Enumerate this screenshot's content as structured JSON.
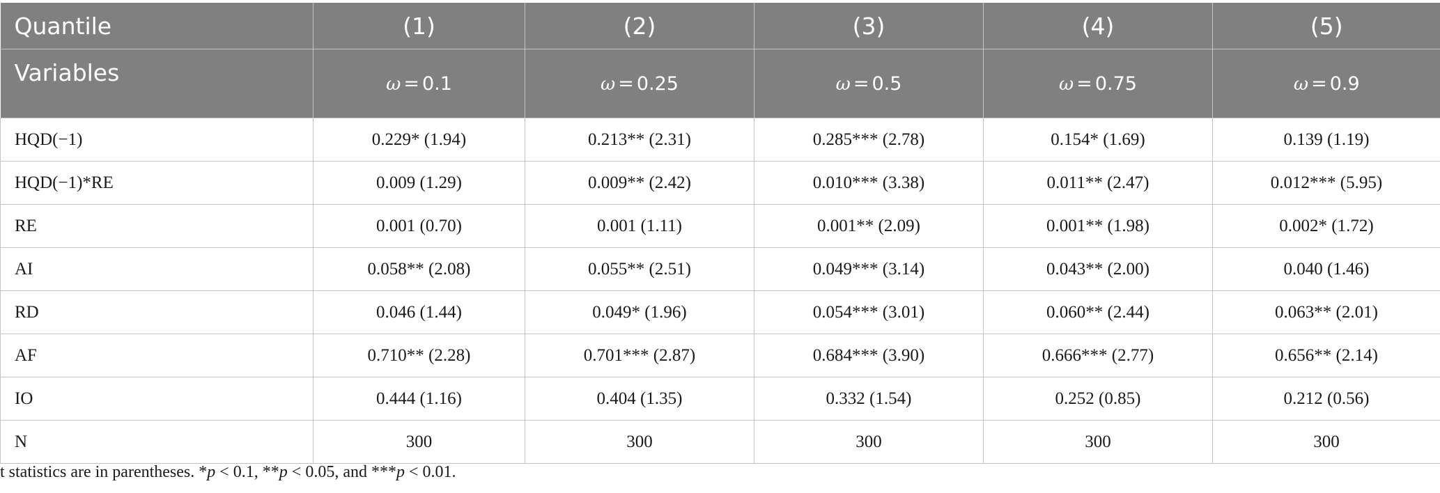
{
  "header": {
    "row1": [
      "Quantile",
      "(1)",
      "(2)",
      "(3)",
      "(4)",
      "(5)"
    ],
    "row2_label": "Variables",
    "omega_symbol": "ω",
    "omega_eq": "=",
    "omega_values": [
      "0.1",
      "0.25",
      "0.5",
      "0.75",
      "0.9"
    ]
  },
  "rows": [
    {
      "label": "HQD(−1)",
      "cells": [
        "0.229* (1.94)",
        "0.213** (2.31)",
        "0.285*** (2.78)",
        "0.154* (1.69)",
        "0.139 (1.19)"
      ]
    },
    {
      "label": "HQD(−1)*RE",
      "cells": [
        "0.009 (1.29)",
        "0.009** (2.42)",
        "0.010*** (3.38)",
        "0.011** (2.47)",
        "0.012*** (5.95)"
      ]
    },
    {
      "label": "RE",
      "cells": [
        "0.001 (0.70)",
        "0.001 (1.11)",
        "0.001** (2.09)",
        "0.001** (1.98)",
        "0.002* (1.72)"
      ]
    },
    {
      "label": "AI",
      "cells": [
        "0.058** (2.08)",
        "0.055** (2.51)",
        "0.049*** (3.14)",
        "0.043** (2.00)",
        "0.040 (1.46)"
      ]
    },
    {
      "label": "RD",
      "cells": [
        "0.046 (1.44)",
        "0.049* (1.96)",
        "0.054*** (3.01)",
        "0.060** (2.44)",
        "0.063** (2.01)"
      ]
    },
    {
      "label": "AF",
      "cells": [
        "0.710** (2.28)",
        "0.701*** (2.87)",
        "0.684*** (3.90)",
        "0.666*** (2.77)",
        "0.656** (2.14)"
      ]
    },
    {
      "label": "IO",
      "cells": [
        "0.444 (1.16)",
        "0.404 (1.35)",
        "0.332 (1.54)",
        "0.252 (0.85)",
        "0.212 (0.56)"
      ]
    },
    {
      "label": "N",
      "cells": [
        "300",
        "300",
        "300",
        "300",
        "300"
      ]
    }
  ],
  "note": {
    "t1": "t statistics are in parentheses. *",
    "p": "p",
    "t2": " < 0.1, **",
    "t3": " < 0.05, and ***",
    "t4": " < 0.01."
  }
}
